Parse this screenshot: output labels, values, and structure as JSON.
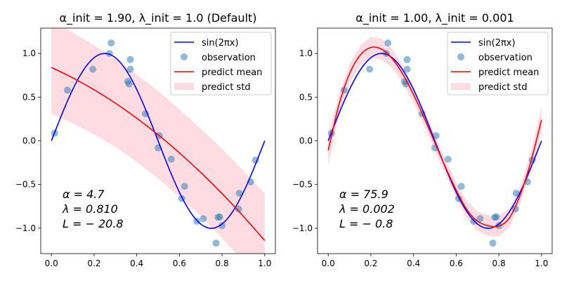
{
  "chart_data": [
    {
      "type": "line",
      "title": "α_init = 1.90,  λ_init = 1.0 (Default)",
      "xlim": [
        -0.05,
        1.05
      ],
      "ylim": [
        -1.29,
        1.29
      ],
      "xticks": [
        "0.0",
        "0.2",
        "0.4",
        "0.6",
        "0.8",
        "1.0"
      ],
      "yticks": [
        "−1.0",
        "−0.5",
        "0.0",
        "0.5",
        "1.0"
      ],
      "grid": false,
      "legend_position": "top-right",
      "legend": [
        "sin(2πx)",
        "observation",
        "predict mean",
        "predict std"
      ],
      "annotation": [
        "α = 4.7",
        "λ = 0.810",
        "L = − 20.8"
      ],
      "truth": "sin(2πx)",
      "predict_x": [
        0,
        0.1,
        0.2,
        0.3,
        0.4,
        0.5,
        0.6,
        0.7,
        0.8,
        0.9,
        1.0
      ],
      "predict_mean": [
        0.84,
        0.721,
        0.585,
        0.431,
        0.259,
        0.07,
        -0.137,
        -0.361,
        -0.603,
        -0.863,
        -1.14
      ],
      "predict_std": [
        0.53,
        0.52,
        0.51,
        0.5,
        0.5,
        0.5,
        0.5,
        0.5,
        0.51,
        0.52,
        0.54
      ]
    },
    {
      "type": "line",
      "title": "α_init = 1.00,  λ_init = 0.001",
      "xlim": [
        -0.05,
        1.05
      ],
      "ylim": [
        -1.29,
        1.29
      ],
      "xticks": [
        "0.0",
        "0.2",
        "0.4",
        "0.6",
        "0.8",
        "1.0"
      ],
      "yticks": [
        "−1.0",
        "−0.5",
        "0.0",
        "0.5",
        "1.0"
      ],
      "grid": false,
      "legend_position": "top-right",
      "legend": [
        "sin(2πx)",
        "observation",
        "predict mean",
        "predict std"
      ],
      "annotation": [
        "α = 75.9",
        "λ = 0.002",
        "L = − 0.8"
      ],
      "truth": "sin(2πx)",
      "predict_x": [
        0,
        0.05,
        0.1,
        0.15,
        0.2,
        0.25,
        0.3,
        0.35,
        0.4,
        0.45,
        0.5,
        0.55,
        0.6,
        0.65,
        0.7,
        0.75,
        0.8,
        0.85,
        0.9,
        0.95,
        1.0
      ],
      "predict_mean": [
        -0.11,
        0.409,
        0.767,
        0.981,
        1.069,
        1.05,
        0.942,
        0.762,
        0.53,
        0.263,
        -0.02,
        -0.302,
        -0.563,
        -0.787,
        -0.92,
        -0.97,
        -0.975,
        -0.88,
        -0.62,
        -0.24,
        0.24
      ],
      "predict_std": [
        0.17,
        0.12,
        0.11,
        0.11,
        0.12,
        0.12,
        0.11,
        0.1,
        0.09,
        0.09,
        0.09,
        0.09,
        0.09,
        0.1,
        0.11,
        0.12,
        0.12,
        0.11,
        0.1,
        0.11,
        0.15
      ]
    }
  ],
  "observations": {
    "x": [
      0.015,
      0.075,
      0.194,
      0.272,
      0.28,
      0.37,
      0.37,
      0.358,
      0.364,
      0.44,
      0.506,
      0.5,
      0.562,
      0.624,
      0.611,
      0.682,
      0.712,
      0.772,
      0.781,
      0.789,
      0.8,
      0.878,
      0.881,
      0.934,
      0.957
    ],
    "y": [
      0.088,
      0.58,
      0.82,
      1.0,
      1.12,
      0.93,
      0.82,
      0.68,
      0.65,
      0.31,
      0.06,
      -0.08,
      -0.21,
      -0.52,
      -0.66,
      -0.92,
      -0.89,
      -1.17,
      -0.875,
      -0.87,
      -0.97,
      -0.78,
      -0.6,
      -0.47,
      -0.22
    ]
  },
  "colors": {
    "truth": "#0000ff",
    "observation": "#1f77b4",
    "mean": "#ff0000",
    "std": "#ffc0cb"
  }
}
